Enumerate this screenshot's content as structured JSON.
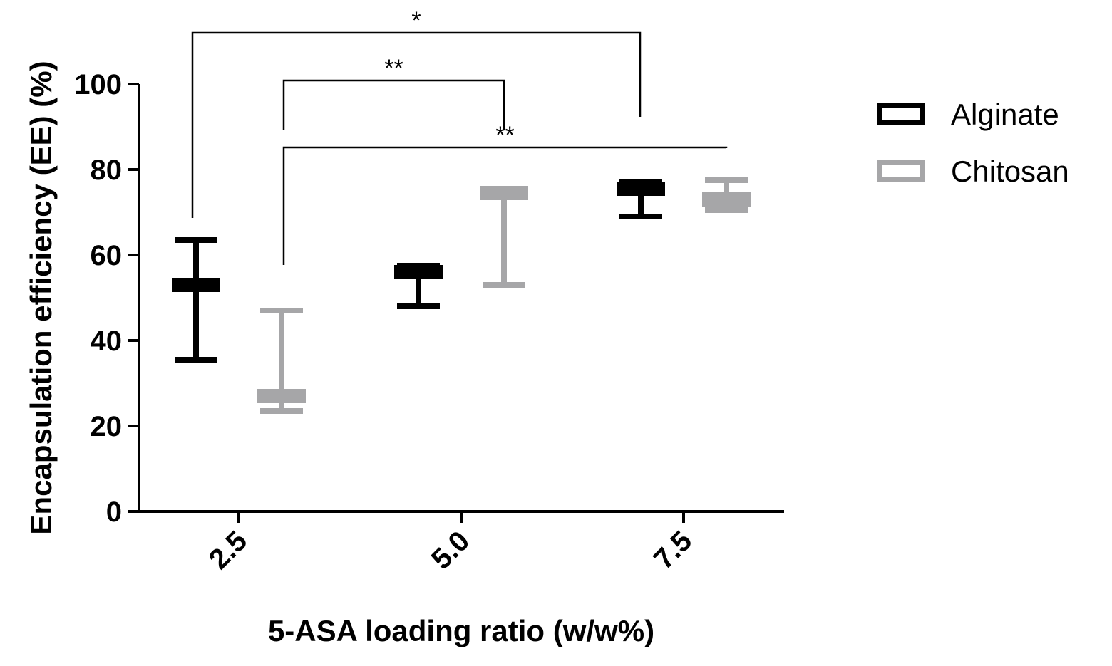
{
  "chart_data": {
    "type": "box",
    "xlabel": "5-ASA loading ratio (w/w%)",
    "ylabel": "Encapsulation efficiency (EE) (%)",
    "ylim": [
      0,
      100
    ],
    "yticks": [
      0,
      20,
      40,
      60,
      80,
      100
    ],
    "categories": [
      "2.5",
      "5.0",
      "7.5"
    ],
    "legend_position": "right",
    "grid": false,
    "series": [
      {
        "name": "Alginate",
        "color": "#000000",
        "boxes": [
          {
            "min": 35.5,
            "q1": 52,
            "median": 53,
            "q3": 54,
            "max": 63.5
          },
          {
            "min": 48,
            "q1": 55,
            "median": 56,
            "q3": 57,
            "max": 57.5
          },
          {
            "min": 69,
            "q1": 74.5,
            "median": 75.5,
            "q3": 76.5,
            "max": 77
          }
        ]
      },
      {
        "name": "Chitosan",
        "color": "#a6a6a8",
        "boxes": [
          {
            "min": 23.5,
            "q1": 26,
            "median": 27,
            "q3": 28,
            "max": 47
          },
          {
            "min": 53,
            "q1": 73.5,
            "median": 74.5,
            "q3": 75.5,
            "max": 75.5
          },
          {
            "min": 70.5,
            "q1": 72,
            "median": 73,
            "q3": 74,
            "max": 77.5
          }
        ]
      }
    ],
    "significance": [
      {
        "from": {
          "series": 0,
          "category": 0
        },
        "to": {
          "series": 0,
          "category": 2
        },
        "label": "*"
      },
      {
        "from": {
          "series": 1,
          "category": 0
        },
        "to": {
          "series": 1,
          "category": 1
        },
        "label": "**"
      },
      {
        "from": {
          "series": 1,
          "category": 0
        },
        "to": {
          "series": 1,
          "category": 2
        },
        "label": "**"
      }
    ]
  }
}
